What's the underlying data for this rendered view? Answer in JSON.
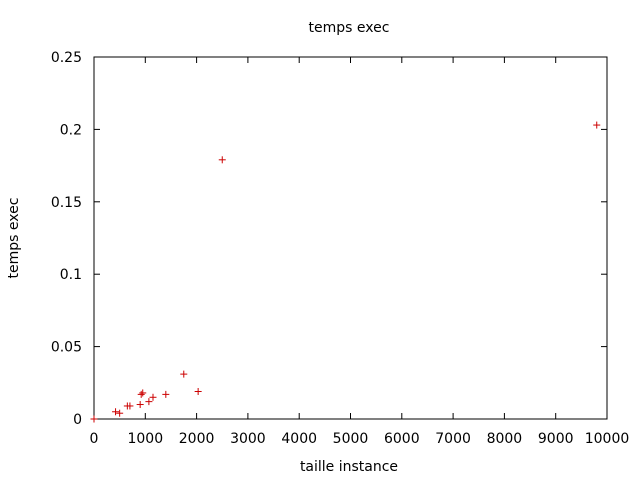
{
  "chart_data": {
    "type": "scatter",
    "title": "temps exec",
    "xlabel": "taille instance",
    "ylabel": "temps exec",
    "xlim": [
      0,
      10000
    ],
    "ylim": [
      0,
      0.25
    ],
    "xticks": [
      0,
      1000,
      2000,
      3000,
      4000,
      5000,
      6000,
      7000,
      8000,
      9000,
      10000
    ],
    "yticks": [
      0,
      0.05,
      0.1,
      0.15,
      0.2,
      0.25
    ],
    "xtick_labels": [
      "0",
      "1000",
      "2000",
      "3000",
      "4000",
      "5000",
      "6000",
      "7000",
      "8000",
      "9000",
      "10000"
    ],
    "ytick_labels": [
      "0",
      "0.05",
      "0.1",
      "0.15",
      "0.2",
      "0.25"
    ],
    "grid": false,
    "legend": null,
    "marker": "+",
    "marker_color": "#cc0000",
    "series": [
      {
        "points": [
          [
            0,
            0.0
          ],
          [
            420,
            0.005
          ],
          [
            500,
            0.004
          ],
          [
            650,
            0.009
          ],
          [
            700,
            0.009
          ],
          [
            900,
            0.01
          ],
          [
            920,
            0.017
          ],
          [
            950,
            0.018
          ],
          [
            1070,
            0.012
          ],
          [
            1150,
            0.015
          ],
          [
            1400,
            0.017
          ],
          [
            1750,
            0.031
          ],
          [
            2030,
            0.019
          ],
          [
            2500,
            0.179
          ],
          [
            9800,
            0.203
          ]
        ]
      }
    ]
  }
}
